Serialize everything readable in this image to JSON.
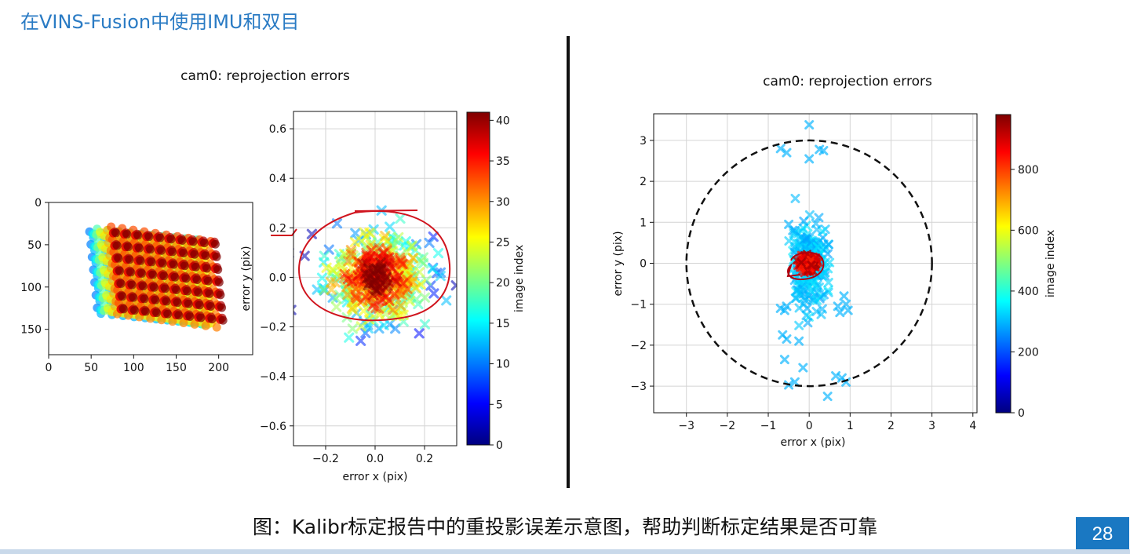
{
  "slide": {
    "title": "在VINS-Fusion中使用IMU和双目",
    "caption": "图：Kalibr标定报告中的重投影误差示意图，帮助判断标定结果是否可靠",
    "page_number": "28"
  },
  "chart_data": [
    {
      "type": "scatter",
      "id": "left-reprojection",
      "title": "cam0: reprojection errors",
      "colorbar_label": "image index",
      "colormap": "jet",
      "colorbar_range": [
        0,
        41
      ],
      "colorbar_ticks": [
        "0",
        "5",
        "10",
        "15",
        "20",
        "25",
        "30",
        "35",
        "40"
      ],
      "inset": {
        "type": "scatter",
        "xlim": [
          0,
          240
        ],
        "ylim": [
          180,
          0
        ],
        "xticks": [
          "0",
          "50",
          "100",
          "150",
          "200"
        ],
        "yticks": [
          "0",
          "50",
          "100",
          "150"
        ]
      },
      "xlabel": "error x (pix)",
      "ylabel": "error y (pix)",
      "xlim": [
        -0.33,
        0.33
      ],
      "ylim": [
        -0.68,
        0.67
      ],
      "xticks": [
        "−0.2",
        "0.0",
        "0.2"
      ],
      "yticks": [
        "−0.6",
        "−0.4",
        "−0.2",
        "0.0",
        "0.2",
        "0.4",
        "0.6"
      ],
      "grid": true,
      "marker": "x",
      "spread_sigma": [
        0.1,
        0.09
      ],
      "annotation": "hand-drawn red ellipse around the core of the error cloud"
    },
    {
      "type": "scatter",
      "id": "right-reprojection",
      "title": "cam0: reprojection errors",
      "colorbar_label": "image index",
      "colormap": "jet",
      "colorbar_range": [
        0,
        980
      ],
      "colorbar_ticks": [
        "0",
        "200",
        "400",
        "600",
        "800"
      ],
      "xlabel": "error x (pix)",
      "ylabel": "error y (pix)",
      "xlim": [
        -3.8,
        4.1
      ],
      "ylim": [
        -3.65,
        3.65
      ],
      "xticks": [
        "−3",
        "−2",
        "−1",
        "0",
        "1",
        "2",
        "3",
        "4"
      ],
      "yticks": [
        "−3",
        "−2",
        "−1",
        "0",
        "1",
        "2",
        "3"
      ],
      "grid": true,
      "marker": "x",
      "reference_circle_radius": 3,
      "outlier_points": [
        [
          0,
          3.38
        ],
        [
          -0.7,
          2.8
        ],
        [
          -0.55,
          2.7
        ],
        [
          0,
          2.55
        ],
        [
          0.25,
          2.78
        ],
        [
          0.35,
          2.75
        ],
        [
          -0.5,
          0.95
        ],
        [
          -0.4,
          0.8
        ],
        [
          -0.7,
          -1.1
        ],
        [
          -0.6,
          -1.15
        ],
        [
          -0.55,
          -1.05
        ],
        [
          -0.65,
          -1.75
        ],
        [
          -0.55,
          -1.85
        ],
        [
          -0.25,
          -1.9
        ],
        [
          -0.6,
          -2.35
        ],
        [
          -0.15,
          -2.55
        ],
        [
          -0.35,
          -2.9
        ],
        [
          -0.5,
          -2.97
        ],
        [
          0.65,
          -2.75
        ],
        [
          0.8,
          -2.8
        ],
        [
          0.9,
          -2.9
        ],
        [
          0.45,
          -3.25
        ],
        [
          0.7,
          -1.05
        ],
        [
          0.9,
          -1.0
        ],
        [
          0.95,
          -1.15
        ],
        [
          0.75,
          -1.2
        ],
        [
          0.85,
          -0.8
        ],
        [
          -0.1,
          -0.9
        ],
        [
          -0.05,
          -1.1
        ]
      ],
      "annotation": "hand-drawn red loop around the dense center cluster"
    }
  ]
}
